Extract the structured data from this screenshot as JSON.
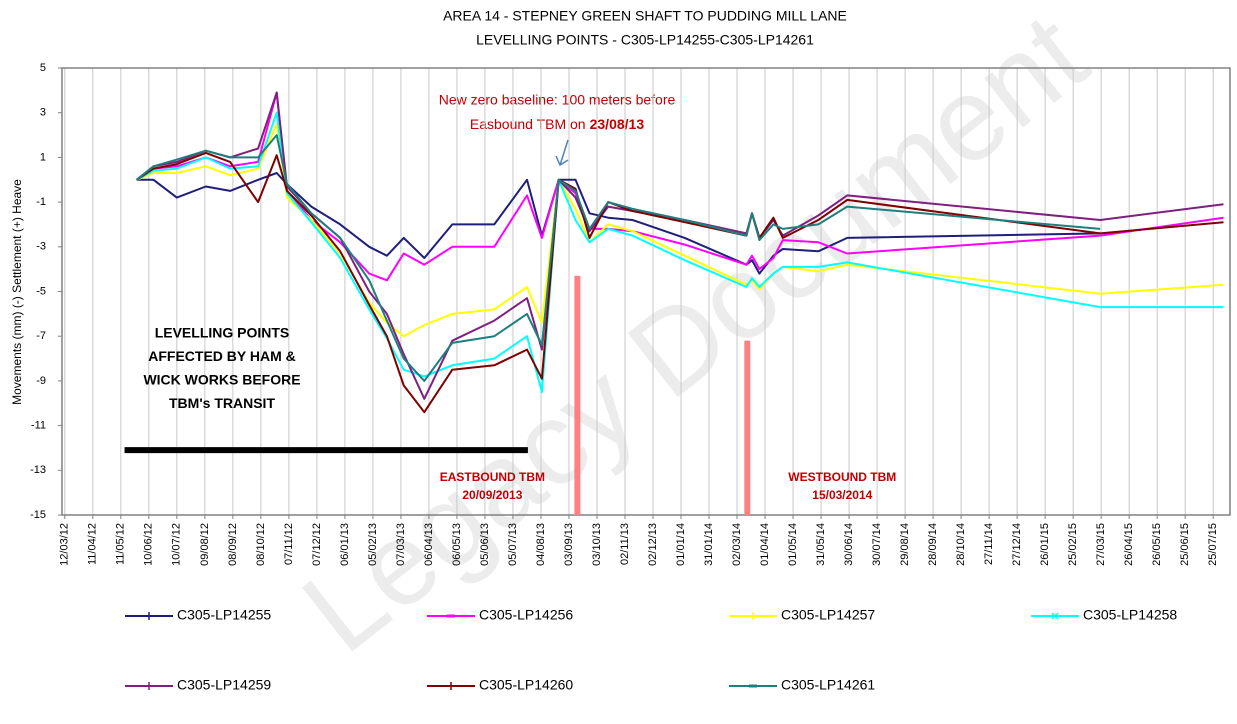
{
  "chart_data": {
    "type": "line",
    "title": [
      "AREA 14 - STEPNEY GREEN SHAFT TO PUDDING MILL LANE",
      "LEVELLING POINTS -  C305-LP14255-C305-LP14261"
    ],
    "ylabel": "Movements (mm) (-) Settlement (+) Heave",
    "x": [
      "2012-05-28",
      "2012-06-15",
      "2012-07-10",
      "2012-08-10",
      "2012-09-05",
      "2012-10-05",
      "2012-10-25",
      "2012-11-05",
      "2012-12-01",
      "2013-01-01",
      "2013-02-01",
      "2013-02-20",
      "2013-03-10",
      "2013-04-01",
      "2013-05-01",
      "2013-06-15",
      "2013-07-20",
      "2013-08-05",
      "2013-08-23",
      "2013-09-10",
      "2013-09-25",
      "2013-10-15",
      "2013-11-10",
      "2014-01-05",
      "2014-03-12",
      "2014-03-18",
      "2014-03-26",
      "2014-04-10",
      "2014-04-20",
      "2014-05-28",
      "2014-06-28",
      "2015-03-26",
      "2015-08-05"
    ],
    "series": [
      {
        "name": "C305-LP14255",
        "color": "#1f1f7a",
        "marker": "+",
        "values": [
          0,
          0.0,
          -0.8,
          -0.3,
          -0.5,
          0.0,
          0.3,
          -0.2,
          -1.2,
          -2.0,
          -3.0,
          -3.4,
          -2.6,
          -3.5,
          -2.0,
          -2.0,
          0.0,
          -2.5,
          0,
          0.0,
          -1.5,
          -1.7,
          -1.8,
          -2.6,
          -3.8,
          -3.6,
          -4.2,
          -3.4,
          -3.1,
          -3.2,
          -2.6,
          -2.4,
          null
        ]
      },
      {
        "name": "C305-LP14256",
        "color": "#ff00ff",
        "marker": "-",
        "values": [
          0,
          0.5,
          0.6,
          1.0,
          0.6,
          0.8,
          3.9,
          -0.5,
          -1.8,
          -2.8,
          -4.2,
          -4.5,
          -3.3,
          -3.8,
          -3.0,
          -3.0,
          -0.7,
          -2.6,
          0,
          -0.6,
          -2.2,
          -2.2,
          -2.3,
          -2.9,
          -3.8,
          -3.4,
          -4.0,
          -3.5,
          -2.7,
          -2.8,
          -3.3,
          -2.5,
          -1.7
        ]
      },
      {
        "name": "C305-LP14257",
        "color": "#ffff00",
        "marker": "+",
        "values": [
          0,
          0.3,
          0.3,
          0.6,
          0.2,
          0.5,
          2.5,
          -0.8,
          -1.8,
          -3.3,
          -5.5,
          -6.4,
          -7.0,
          -6.5,
          -6.0,
          -5.8,
          -4.8,
          -6.4,
          0,
          -1.3,
          -2.8,
          -2.0,
          -2.3,
          -3.4,
          -4.7,
          -4.5,
          -4.9,
          -4.2,
          -3.9,
          -4.1,
          -3.8,
          -5.1,
          -4.7
        ]
      },
      {
        "name": "C305-LP14258",
        "color": "#00ffff",
        "marker": "x",
        "values": [
          0,
          0.4,
          0.5,
          1.0,
          0.5,
          0.6,
          3.0,
          -0.6,
          -1.9,
          -3.5,
          -5.8,
          -7.1,
          -8.5,
          -8.8,
          -8.3,
          -8.0,
          -7.0,
          -9.5,
          0,
          -1.8,
          -2.8,
          -2.2,
          -2.5,
          -3.6,
          -4.8,
          -4.4,
          -4.8,
          -4.2,
          -3.9,
          -3.9,
          -3.7,
          -5.7,
          -5.7
        ]
      },
      {
        "name": "C305-LP14259",
        "color": "#7f1f7f",
        "marker": "+",
        "values": [
          0,
          0.6,
          0.8,
          1.3,
          1.0,
          1.4,
          3.9,
          -0.3,
          -1.5,
          -2.6,
          -5.0,
          -6.0,
          -7.8,
          -9.8,
          -7.2,
          -6.3,
          -5.3,
          -7.6,
          0,
          -0.8,
          -2.3,
          -1.2,
          -1.4,
          -1.8,
          -2.4,
          -1.5,
          -2.6,
          -1.8,
          -2.5,
          -1.6,
          -0.7,
          -1.8,
          -1.1
        ]
      },
      {
        "name": "C305-LP14260",
        "color": "#7f0000",
        "marker": "+",
        "values": [
          0,
          0.5,
          0.7,
          1.2,
          0.8,
          -1.0,
          1.1,
          -0.5,
          -1.6,
          -3.2,
          -5.6,
          -7.0,
          -9.2,
          -10.4,
          -8.5,
          -8.3,
          -7.6,
          -8.9,
          0,
          -0.4,
          -2.6,
          -1.0,
          -1.4,
          -1.9,
          -2.5,
          -1.5,
          -2.6,
          -1.7,
          -2.6,
          -1.8,
          -0.9,
          -2.4,
          -1.9
        ]
      },
      {
        "name": "C305-LP14261",
        "color": "#1f7f7f",
        "marker": "-",
        "values": [
          0,
          0.6,
          0.9,
          1.3,
          1.0,
          1.0,
          2.0,
          -0.2,
          -1.5,
          -2.6,
          -4.5,
          -6.3,
          -8.0,
          -9.0,
          -7.3,
          -7.0,
          -6.0,
          -7.4,
          0,
          -0.5,
          -2.2,
          -1.0,
          -1.3,
          -1.8,
          -2.5,
          -1.5,
          -2.7,
          -2.0,
          -2.2,
          -2.0,
          -1.2,
          -2.2,
          null
        ]
      }
    ],
    "xlim": [
      "2012-03-09",
      "2015-08-12"
    ],
    "xticks": [
      {
        "value": "2012-03-12",
        "label": "12/03/12"
      },
      {
        "value": "2012-04-11",
        "label": "11/04/12"
      },
      {
        "value": "2012-05-11",
        "label": "11/05/12"
      },
      {
        "value": "2012-06-10",
        "label": "10/06/12"
      },
      {
        "value": "2012-07-10",
        "label": "10/07/12"
      },
      {
        "value": "2012-08-09",
        "label": "09/08/12"
      },
      {
        "value": "2012-09-08",
        "label": "08/09/12"
      },
      {
        "value": "2012-10-08",
        "label": "08/10/12"
      },
      {
        "value": "2012-11-07",
        "label": "07/11/12"
      },
      {
        "value": "2012-12-07",
        "label": "07/12/12"
      },
      {
        "value": "2013-01-06",
        "label": "06/01/13"
      },
      {
        "value": "2013-02-05",
        "label": "05/02/13"
      },
      {
        "value": "2013-03-07",
        "label": "07/03/13"
      },
      {
        "value": "2013-04-06",
        "label": "06/04/13"
      },
      {
        "value": "2013-05-06",
        "label": "06/05/13"
      },
      {
        "value": "2013-06-05",
        "label": "05/06/13"
      },
      {
        "value": "2013-07-05",
        "label": "05/07/13"
      },
      {
        "value": "2013-08-04",
        "label": "04/08/13"
      },
      {
        "value": "2013-09-03",
        "label": "03/09/13"
      },
      {
        "value": "2013-10-03",
        "label": "03/10/13"
      },
      {
        "value": "2013-11-02",
        "label": "02/11/13"
      },
      {
        "value": "2013-12-02",
        "label": "02/12/13"
      },
      {
        "value": "2014-01-01",
        "label": "01/01/14"
      },
      {
        "value": "2014-01-31",
        "label": "31/01/14"
      },
      {
        "value": "2014-03-02",
        "label": "02/03/14"
      },
      {
        "value": "2014-04-01",
        "label": "01/04/14"
      },
      {
        "value": "2014-05-01",
        "label": "01/05/14"
      },
      {
        "value": "2014-05-31",
        "label": "31/05/14"
      },
      {
        "value": "2014-06-30",
        "label": "30/06/14"
      },
      {
        "value": "2014-07-30",
        "label": "30/07/14"
      },
      {
        "value": "2014-08-29",
        "label": "29/08/14"
      },
      {
        "value": "2014-09-28",
        "label": "28/09/14"
      },
      {
        "value": "2014-10-28",
        "label": "28/10/14"
      },
      {
        "value": "2014-11-27",
        "label": "27/11/14"
      },
      {
        "value": "2014-12-27",
        "label": "27/12/14"
      },
      {
        "value": "2015-01-26",
        "label": "26/01/15"
      },
      {
        "value": "2015-02-25",
        "label": "25/02/15"
      },
      {
        "value": "2015-03-27",
        "label": "27/03/15"
      },
      {
        "value": "2015-04-26",
        "label": "26/04/15"
      },
      {
        "value": "2015-05-26",
        "label": "26/05/15"
      },
      {
        "value": "2015-06-25",
        "label": "25/06/15"
      },
      {
        "value": "2015-07-25",
        "label": "25/07/15"
      }
    ],
    "ylim": [
      -15,
      5
    ],
    "yticks": [
      5,
      3,
      1,
      -1,
      -3,
      -5,
      -7,
      -9,
      -11,
      -13,
      -15
    ],
    "grid": "x",
    "baseline_note": [
      "New zero baseline: 100 meters before",
      "Easbound TBM on",
      "23/08/13"
    ],
    "works_note": [
      "LEVELLING POINTS",
      "AFFECTED BY HAM &",
      "WICK WORKS BEFORE",
      "TBM's TRANSIT"
    ],
    "works_line": {
      "x": [
        "2012-05-15",
        "2013-07-21"
      ],
      "y": -12.1
    },
    "tbm_bars": [
      {
        "x": "2013-09-12",
        "top": -4.3,
        "label": [
          "EASTBOUND TBM",
          "20/09/2013"
        ]
      },
      {
        "x": "2014-03-13",
        "top": -7.2,
        "label": [
          "WESTBOUND TBM",
          "15/03/2014"
        ]
      }
    ],
    "watermark": "Legacy Document"
  }
}
